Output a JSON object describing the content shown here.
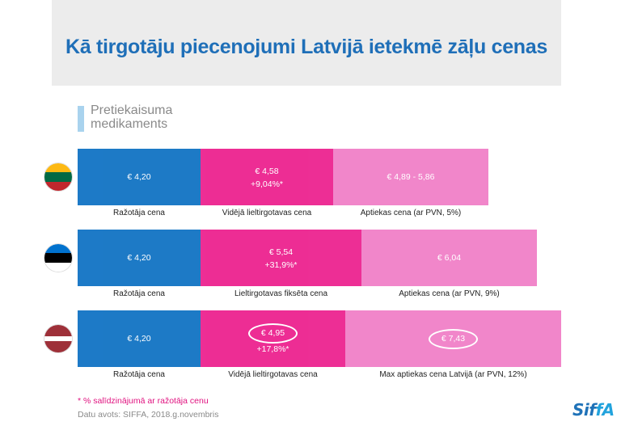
{
  "title": "Kā tirgotāju piecenojumi Latvijā ietekmē zāļu cenas",
  "category_label": "Pretiekaisuma medikaments",
  "footnote": "* % salīdzinājumā ar ražotāja cenu",
  "source": "Datu avots: SIFFA, 2018.g.novembris",
  "logo": "SIFFA",
  "colors": {
    "manufacturer": "#0a6fc2",
    "wholesale": "#ec1c8c",
    "pharmacy": "#f07cc6",
    "accent_marker": "#a9d3ee"
  },
  "chart_data": {
    "type": "bar",
    "orientation": "horizontal-stacked",
    "rows": [
      {
        "country_flag": "lithuania-flag",
        "segments": [
          {
            "label": "Ražotāja cena",
            "value_text": "€ 4,20",
            "value": 4.2,
            "delta": "",
            "color_key": "manufacturer"
          },
          {
            "label": "Vidējā lieltirgotavas cena",
            "value_text": "€ 4,58",
            "value": 4.58,
            "delta": "+9,04%*",
            "color_key": "wholesale"
          },
          {
            "label": "Aptiekas cena (ar PVN, 5%)",
            "value_text": "€ 4,89 - 5,86",
            "value": 5.86,
            "delta": "",
            "color_key": "pharmacy"
          }
        ]
      },
      {
        "country_flag": "estonia-flag",
        "segments": [
          {
            "label": "Ražotāja cena",
            "value_text": "€ 4,20",
            "value": 4.2,
            "delta": "",
            "color_key": "manufacturer"
          },
          {
            "label": "Lieltirgotavas fiksēta cena",
            "value_text": "€ 5,54",
            "value": 5.54,
            "delta": "+31,9%*",
            "color_key": "wholesale"
          },
          {
            "label": "Aptiekas cena (ar PVN, 9%)",
            "value_text": "€ 6,04",
            "value": 6.04,
            "delta": "",
            "color_key": "pharmacy"
          }
        ]
      },
      {
        "country_flag": "latvia-flag",
        "segments": [
          {
            "label": "Ražotāja cena",
            "value_text": "€ 4,20",
            "value": 4.2,
            "delta": "",
            "color_key": "manufacturer"
          },
          {
            "label": "Vidējā lieltirgotavas cena",
            "value_text": "€ 4,95",
            "value": 4.95,
            "delta": "+17,8%*",
            "color_key": "wholesale",
            "highlighted": true
          },
          {
            "label": "Max aptiekas cena Latvijā (ar PVN, 12%)",
            "value_text": "€ 7,43",
            "value": 7.43,
            "delta": "",
            "color_key": "pharmacy",
            "highlighted": true
          }
        ]
      }
    ]
  }
}
